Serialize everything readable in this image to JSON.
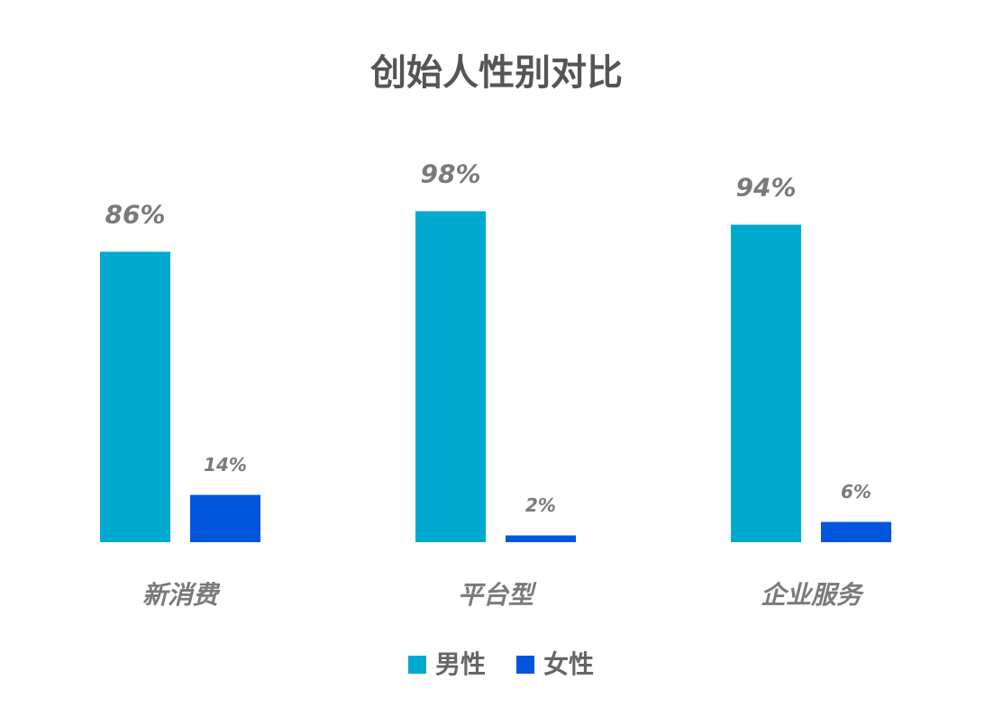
{
  "chart_data": {
    "type": "bar",
    "title": "创始人性别对比",
    "categories": [
      "新消费",
      "平台型",
      "企业服务"
    ],
    "series": [
      {
        "name": "男性",
        "color": "#00a9d0",
        "values": [
          86,
          98,
          94
        ],
        "value_labels": [
          "86%",
          "98%",
          "94%"
        ]
      },
      {
        "name": "女性",
        "color": "#0055dd",
        "values": [
          14,
          2,
          6
        ],
        "value_labels": [
          "14%",
          "2%",
          "6%"
        ]
      }
    ],
    "ylim": [
      0,
      100
    ],
    "grid": false,
    "legend": "bottom"
  }
}
